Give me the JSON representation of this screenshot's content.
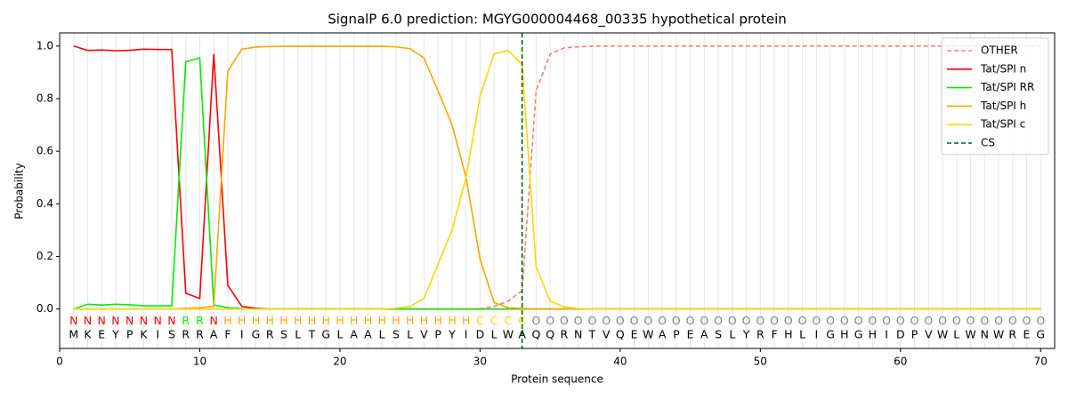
{
  "chart_data": {
    "type": "line",
    "title": "SignalP 6.0 prediction: MGYG000004468_00335 hypothetical protein",
    "x_label": "Protein sequence",
    "y_label": "Probability",
    "xlim": [
      0,
      71
    ],
    "ylim": [
      -0.15,
      1.05
    ],
    "xticks": [
      0,
      10,
      20,
      30,
      40,
      50,
      60,
      70
    ],
    "yticks": [
      {
        "value": 0,
        "label": "0.0"
      },
      {
        "value": 0.2,
        "label": "0.2"
      },
      {
        "value": 0.4,
        "label": "0.4"
      },
      {
        "value": 0.6,
        "label": "0.6"
      },
      {
        "value": 0.8,
        "label": "0.8"
      },
      {
        "value": 1,
        "label": "1.0"
      }
    ],
    "grid": true,
    "legend": "upper right",
    "x": [
      1,
      2,
      3,
      4,
      5,
      6,
      7,
      8,
      9,
      10,
      11,
      12,
      13,
      14,
      15,
      16,
      17,
      18,
      19,
      20,
      21,
      22,
      23,
      24,
      25,
      26,
      27,
      28,
      29,
      30,
      31,
      32,
      33,
      34,
      35,
      36,
      37,
      38,
      39,
      40,
      41,
      42,
      43,
      44,
      45,
      46,
      47,
      48,
      49,
      50,
      51,
      52,
      53,
      54,
      55,
      56,
      57,
      58,
      59,
      60,
      61,
      62,
      63,
      64,
      65,
      66,
      67,
      68,
      69,
      70
    ],
    "series": [
      {
        "name": "OTHER",
        "color": "#f08080",
        "dashed": true,
        "values": [
          0,
          0,
          0,
          0,
          0,
          0,
          0,
          0,
          0,
          0,
          0,
          0,
          0,
          0,
          0,
          0,
          0,
          0,
          0,
          0,
          0,
          0,
          0,
          0,
          0,
          0,
          0,
          0,
          0,
          0,
          0.01,
          0.03,
          0.07,
          0.83,
          0.97,
          0.993,
          0.997,
          1,
          1,
          1,
          1,
          1,
          1,
          1,
          1,
          1,
          1,
          1,
          1,
          1,
          1,
          1,
          1,
          1,
          1,
          1,
          1,
          1,
          1,
          1,
          1,
          1,
          1,
          1,
          1,
          1,
          1,
          1,
          1,
          1
        ]
      },
      {
        "name": "Tat/SPI n",
        "color": "#ff0000",
        "values": [
          1.0,
          0.983,
          0.985,
          0.982,
          0.984,
          0.988,
          0.987,
          0.987,
          0.06,
          0.04,
          0.97,
          0.09,
          0.01,
          0.003,
          0,
          0,
          0,
          0,
          0,
          0,
          0,
          0,
          0,
          0,
          0,
          0,
          0,
          0,
          0,
          0,
          0,
          0,
          0,
          0,
          0,
          0,
          0,
          0,
          0,
          0,
          0,
          0,
          0,
          0,
          0,
          0,
          0,
          0,
          0,
          0,
          0,
          0,
          0,
          0,
          0,
          0,
          0,
          0,
          0,
          0,
          0,
          0,
          0,
          0,
          0,
          0,
          0,
          0,
          0,
          0
        ]
      },
      {
        "name": "Tat/SPI RR",
        "color": "#00ee00",
        "values": [
          0,
          0.018,
          0.015,
          0.018,
          0.016,
          0.012,
          0.012,
          0.012,
          0.94,
          0.955,
          0.015,
          0.005,
          0.002,
          0,
          0,
          0,
          0,
          0,
          0,
          0,
          0,
          0,
          0,
          0,
          0,
          0,
          0,
          0,
          0,
          0,
          0,
          0,
          0,
          0,
          0,
          0,
          0,
          0,
          0,
          0,
          0,
          0,
          0,
          0,
          0,
          0,
          0,
          0,
          0,
          0,
          0,
          0,
          0,
          0,
          0,
          0,
          0,
          0,
          0,
          0,
          0,
          0,
          0,
          0,
          0,
          0,
          0,
          0,
          0,
          0
        ]
      },
      {
        "name": "Tat/SPI h",
        "color": "#ffa500",
        "values": [
          0,
          0,
          0,
          0,
          0,
          0,
          0,
          0,
          0.003,
          0.005,
          0.01,
          0.905,
          0.988,
          0.996,
          0.998,
          0.999,
          0.999,
          0.999,
          0.999,
          0.999,
          0.999,
          0.999,
          0.999,
          0.997,
          0.99,
          0.955,
          0.83,
          0.7,
          0.5,
          0.19,
          0.025,
          0.005,
          0.002,
          0,
          0,
          0,
          0,
          0,
          0,
          0,
          0,
          0,
          0,
          0,
          0,
          0,
          0,
          0,
          0,
          0,
          0,
          0,
          0,
          0,
          0,
          0,
          0,
          0,
          0,
          0,
          0,
          0,
          0,
          0,
          0,
          0,
          0,
          0,
          0,
          0
        ]
      },
      {
        "name": "Tat/SPI c",
        "color": "#ffd700",
        "values": [
          0,
          0,
          0,
          0,
          0,
          0,
          0,
          0,
          0,
          0,
          0,
          0,
          0,
          0,
          0,
          0,
          0,
          0,
          0,
          0,
          0,
          0,
          0,
          0.003,
          0.01,
          0.04,
          0.17,
          0.3,
          0.5,
          0.81,
          0.97,
          0.983,
          0.93,
          0.16,
          0.03,
          0.008,
          0.002,
          0,
          0,
          0,
          0,
          0,
          0,
          0,
          0,
          0,
          0,
          0,
          0,
          0,
          0,
          0,
          0,
          0,
          0,
          0,
          0,
          0,
          0,
          0,
          0,
          0,
          0,
          0,
          0,
          0,
          0,
          0,
          0,
          0
        ]
      }
    ],
    "cs": {
      "name": "CS",
      "color": "#006400",
      "position": 33
    },
    "regions": [
      "N",
      "N",
      "N",
      "N",
      "N",
      "N",
      "N",
      "N",
      "R",
      "R",
      "N",
      "H",
      "H",
      "H",
      "H",
      "H",
      "H",
      "H",
      "H",
      "H",
      "H",
      "H",
      "H",
      "H",
      "H",
      "H",
      "H",
      "H",
      "H",
      "C",
      "C",
      "C",
      "C",
      "O",
      "O",
      "O",
      "O",
      "O",
      "O",
      "O",
      "O",
      "O",
      "O",
      "O",
      "O",
      "O",
      "O",
      "O",
      "O",
      "O",
      "O",
      "O",
      "O",
      "O",
      "O",
      "O",
      "O",
      "O",
      "O",
      "O",
      "O",
      "O",
      "O",
      "O",
      "O",
      "O",
      "O",
      "O",
      "O",
      "O"
    ],
    "region_colors": {
      "N": "#ff0000",
      "R": "#00ee00",
      "H": "#ffa500",
      "C": "#ffd700",
      "O": "#808080"
    },
    "sequence": [
      "M",
      "K",
      "E",
      "Y",
      "P",
      "K",
      "I",
      "S",
      "R",
      "R",
      "A",
      "F",
      "I",
      "G",
      "R",
      "S",
      "L",
      "T",
      "G",
      "L",
      "A",
      "A",
      "L",
      "S",
      "L",
      "V",
      "P",
      "Y",
      "I",
      "D",
      "L",
      "W",
      "A",
      "Q",
      "Q",
      "R",
      "N",
      "T",
      "V",
      "Q",
      "E",
      "W",
      "A",
      "P",
      "E",
      "A",
      "S",
      "L",
      "Y",
      "R",
      "F",
      "H",
      "L",
      "I",
      "G",
      "H",
      "G",
      "H",
      "I",
      "D",
      "P",
      "V",
      "W",
      "L",
      "W",
      "N",
      "W",
      "R",
      "E",
      "G"
    ]
  }
}
